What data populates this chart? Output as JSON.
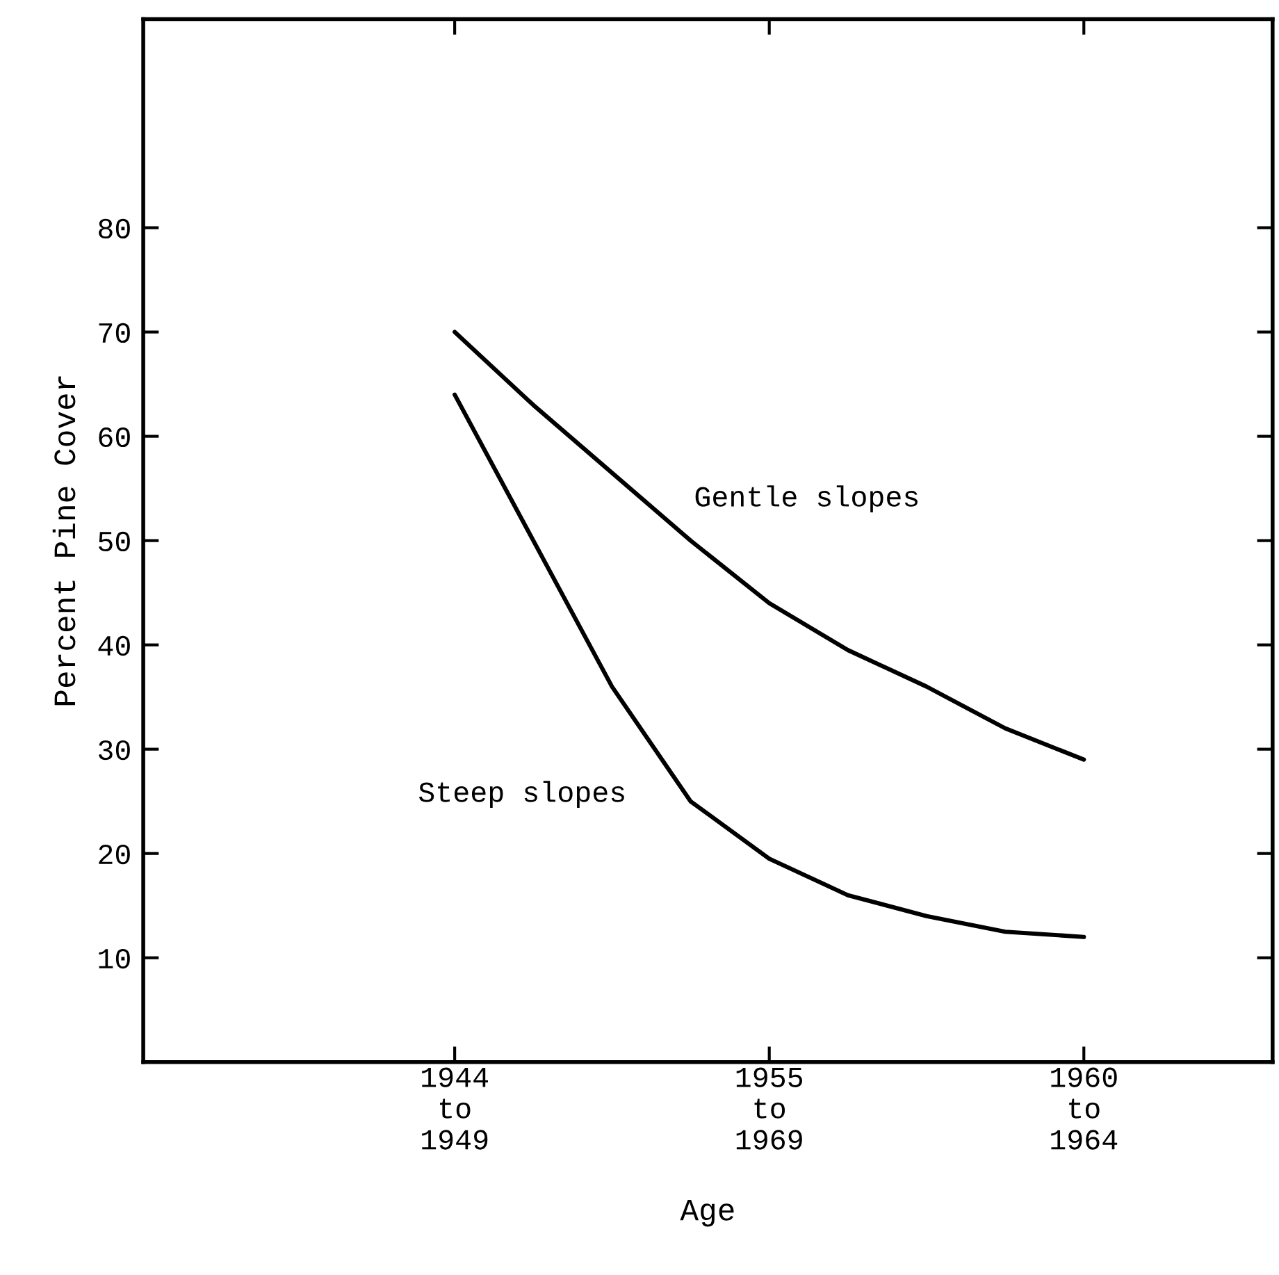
{
  "chart_data": {
    "type": "line",
    "xlabel": "Age",
    "ylabel": "Percent Pine Cover",
    "categories": [
      "1944\nto\n1949",
      null,
      null,
      null,
      "1955\nto\n1969",
      null,
      null,
      null,
      "1960\nto\n1964"
    ],
    "ylim": [
      0,
      100
    ],
    "yticks": [
      10,
      20,
      30,
      40,
      50,
      60,
      70,
      80
    ],
    "grid": false,
    "marker": "none",
    "line_style": "solid",
    "series": [
      {
        "name": "Gentle slopes",
        "color": "#000000",
        "values": [
          70,
          63,
          56.5,
          50,
          44,
          39.5,
          36,
          32,
          29
        ]
      },
      {
        "name": "Steep slopes",
        "color": "#000000",
        "values": [
          64,
          50,
          36,
          25,
          19.5,
          16,
          14,
          12.5,
          12
        ]
      }
    ]
  }
}
